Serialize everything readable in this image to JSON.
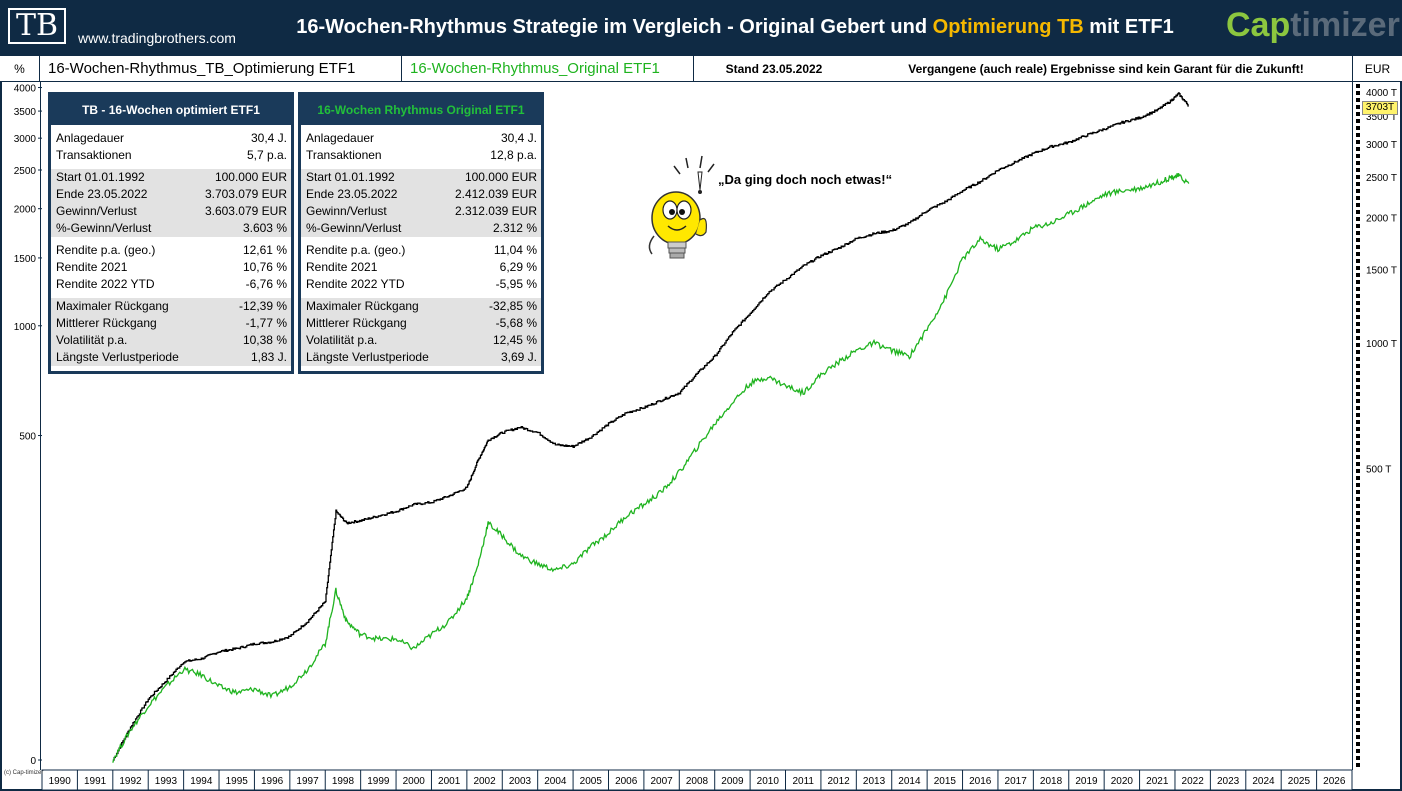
{
  "header": {
    "logo": "TB",
    "site_url": "www.tradingbrothers.com",
    "title_part1": "16-Wochen-Rhythmus Strategie im Vergleich - Original Gebert und ",
    "title_highlight": "Optimierung TB",
    "title_part2": " mit ETF1",
    "brand_a": "Cap",
    "brand_b": "timizer"
  },
  "subheader": {
    "left_unit": "%",
    "legend_tb": "16-Wochen-Rhythmus_TB_Optimierung  ETF1",
    "legend_orig": "16-Wochen-Rhythmus_Original ETF1",
    "stand": "Stand 23.05.2022",
    "disclaimer": "Vergangene (auch reale) Ergebnisse sind kein Garant für die Zukunft!",
    "right_unit": "EUR"
  },
  "panel_tb": {
    "title": "TB - 16-Wochen  optimiert  ETF1",
    "rows": [
      {
        "label": "Anlagedauer",
        "value": "30,4 J."
      },
      {
        "label": "Transaktionen",
        "value": "5,7 p.a."
      },
      {
        "label": "Start  01.01.1992",
        "value": "100.000 EUR"
      },
      {
        "label": "Ende 23.05.2022",
        "value": "3.703.079 EUR"
      },
      {
        "label": "Gewinn/Verlust",
        "value": "3.603.079 EUR"
      },
      {
        "label": "%-Gewinn/Verlust",
        "value": "3.603 %"
      },
      {
        "label": "Rendite p.a. (geo.)",
        "value": "12,61 %"
      },
      {
        "label": "Rendite 2021",
        "value": "10,76 %"
      },
      {
        "label": "Rendite 2022 YTD",
        "value": "-6,76 %"
      },
      {
        "label": "Maximaler Rückgang",
        "value": "-12,39 %"
      },
      {
        "label": "Mittlerer Rückgang",
        "value": "-1,77 %"
      },
      {
        "label": "Volatilität p.a.",
        "value": "10,38 %"
      },
      {
        "label": "Längste Verlustperiode",
        "value": "1,83 J."
      }
    ]
  },
  "panel_orig": {
    "title": "16-Wochen Rhythmus Original  ETF1",
    "rows": [
      {
        "label": "Anlagedauer",
        "value": "30,4 J."
      },
      {
        "label": "Transaktionen",
        "value": "12,8 p.a."
      },
      {
        "label": "Start  01.01.1992",
        "value": "100.000 EUR"
      },
      {
        "label": "Ende 23.05.2022",
        "value": "2.412.039 EUR"
      },
      {
        "label": "Gewinn/Verlust",
        "value": "2.312.039 EUR"
      },
      {
        "label": "%-Gewinn/Verlust",
        "value": "2.312 %"
      },
      {
        "label": "Rendite p.a. (geo.)",
        "value": "11,04 %"
      },
      {
        "label": "Rendite 2021",
        "value": "6,29 %"
      },
      {
        "label": "Rendite 2022 YTD",
        "value": "-5,95 %"
      },
      {
        "label": "Maximaler Rückgang",
        "value": "-32,85 %"
      },
      {
        "label": "Mittlerer Rückgang",
        "value": "-5,68 %"
      },
      {
        "label": "Volatilität p.a.",
        "value": "12,45 %"
      },
      {
        "label": "Längste Verlustperiode",
        "value": "3,69 J."
      }
    ]
  },
  "annotation": "„Da ging doch noch etwas!“",
  "last_value_badge": "3703T",
  "copyright": "(c) Cap-timizer",
  "chart_data": {
    "type": "line",
    "y_scale": "log",
    "left_axis_ticks": [
      "0",
      "500",
      "1000",
      "1500",
      "2000",
      "2500",
      "3000",
      "3500",
      "4000"
    ],
    "right_axis_ticks": [
      "500 T",
      "1000 T",
      "1500 T",
      "2000 T",
      "2500 T",
      "3000 T",
      "3500 T",
      "4000 T"
    ],
    "x_ticks": [
      "1990",
      "1991",
      "1992",
      "1993",
      "1994",
      "1995",
      "1996",
      "1997",
      "1998",
      "1999",
      "2000",
      "2001",
      "2002",
      "2003",
      "2004",
      "2005",
      "2006",
      "2007",
      "2008",
      "2009",
      "2010",
      "2011",
      "2012",
      "2013",
      "2014",
      "2015",
      "2016",
      "2017",
      "2018",
      "2019",
      "2020",
      "2021",
      "2022",
      "2023",
      "2024",
      "2025",
      "2026"
    ],
    "xlim": [
      1990,
      2027
    ],
    "series": [
      {
        "name": "16-Wochen-Rhythmus_TB_Optimierung  ETF1",
        "color": "#000000",
        "x": [
          1992.0,
          1992.5,
          1993.0,
          1993.5,
          1994.0,
          1994.5,
          1995.0,
          1995.5,
          1996.0,
          1996.5,
          1997.0,
          1997.5,
          1998.0,
          1998.3,
          1998.6,
          1999.0,
          1999.5,
          2000.0,
          2000.5,
          2001.0,
          2001.5,
          2002.0,
          2002.3,
          2002.6,
          2003.0,
          2003.5,
          2004.0,
          2004.5,
          2005.0,
          2005.5,
          2006.0,
          2006.5,
          2007.0,
          2007.5,
          2008.0,
          2008.5,
          2009.0,
          2009.5,
          2010.0,
          2010.5,
          2011.0,
          2011.5,
          2012.0,
          2012.5,
          2013.0,
          2013.5,
          2014.0,
          2014.5,
          2015.0,
          2015.5,
          2016.0,
          2016.5,
          2017.0,
          2017.5,
          2018.0,
          2018.5,
          2019.0,
          2019.5,
          2020.0,
          2020.5,
          2021.0,
          2021.5,
          2021.9,
          2022.1,
          2022.39
        ],
        "y": [
          100,
          120,
          140,
          155,
          172,
          175,
          182,
          185,
          190,
          192,
          198,
          215,
          240,
          395,
          370,
          375,
          385,
          395,
          410,
          415,
          430,
          450,
          520,
          585,
          610,
          628,
          610,
          570,
          565,
          595,
          640,
          680,
          700,
          730,
          760,
          845,
          930,
          1060,
          1180,
          1320,
          1420,
          1530,
          1620,
          1690,
          1780,
          1830,
          1860,
          1940,
          2080,
          2180,
          2320,
          2440,
          2600,
          2720,
          2850,
          2960,
          3030,
          3150,
          3260,
          3380,
          3470,
          3620,
          3820,
          3960,
          3703
        ]
      },
      {
        "name": "16-Wochen-Rhythmus_Original ETF1",
        "color": "#1fb31f",
        "x": [
          1992.0,
          1992.5,
          1993.0,
          1993.5,
          1994.0,
          1994.5,
          1995.0,
          1995.5,
          1996.0,
          1996.5,
          1997.0,
          1997.5,
          1998.0,
          1998.3,
          1998.6,
          1999.0,
          1999.5,
          2000.0,
          2000.5,
          2001.0,
          2001.5,
          2002.0,
          2002.3,
          2002.6,
          2003.0,
          2003.5,
          2004.0,
          2004.5,
          2005.0,
          2005.5,
          2006.0,
          2006.5,
          2007.0,
          2007.5,
          2008.0,
          2008.5,
          2009.0,
          2009.5,
          2010.0,
          2010.5,
          2011.0,
          2011.5,
          2012.0,
          2012.5,
          2013.0,
          2013.5,
          2014.0,
          2014.5,
          2015.0,
          2015.5,
          2016.0,
          2016.5,
          2017.0,
          2017.5,
          2018.0,
          2018.5,
          2019.0,
          2019.5,
          2020.0,
          2020.5,
          2021.0,
          2021.5,
          2021.9,
          2022.1,
          2022.39
        ],
        "y": [
          100,
          118,
          135,
          150,
          165,
          160,
          150,
          145,
          148,
          142,
          150,
          165,
          190,
          255,
          215,
          200,
          195,
          195,
          185,
          200,
          215,
          245,
          290,
          370,
          345,
          310,
          295,
          285,
          295,
          325,
          350,
          385,
          410,
          440,
          490,
          560,
          640,
          720,
          800,
          830,
          790,
          760,
          840,
          900,
          960,
          1000,
          960,
          930,
          1080,
          1280,
          1590,
          1770,
          1680,
          1760,
          1890,
          1940,
          2040,
          2150,
          2270,
          2320,
          2350,
          2420,
          2500,
          2520,
          2412
        ]
      }
    ]
  }
}
